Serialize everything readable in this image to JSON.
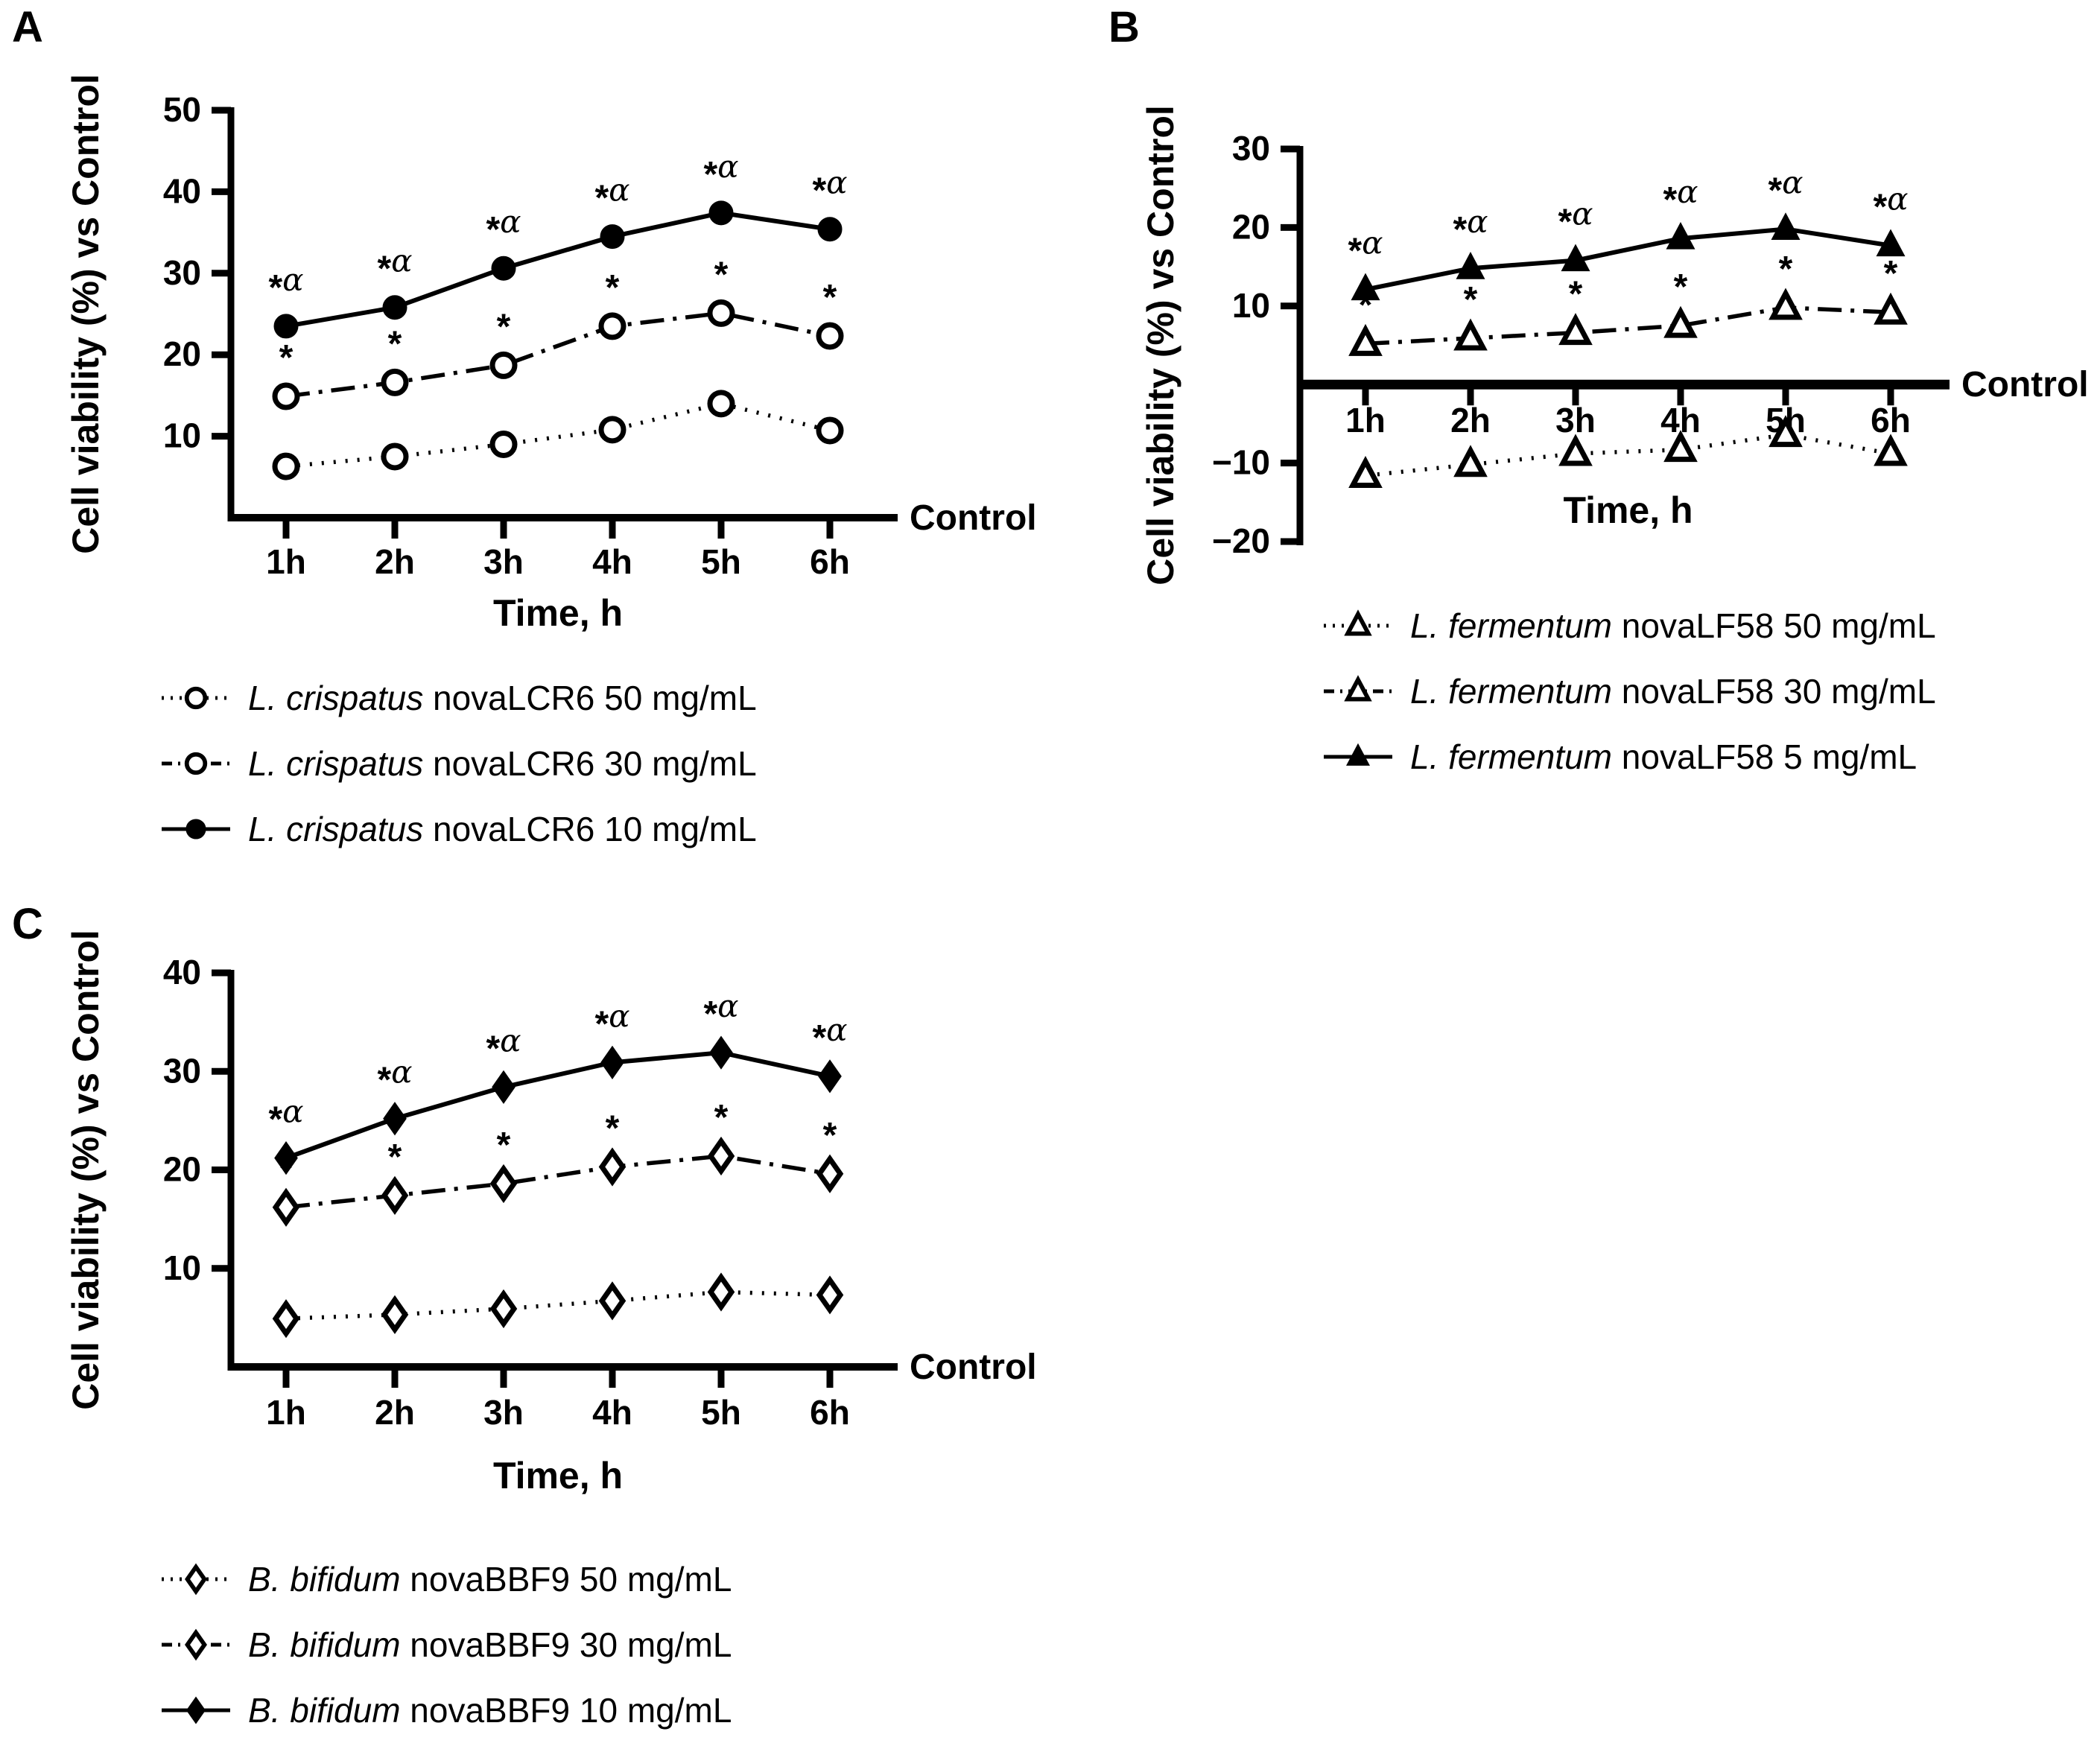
{
  "colors": {
    "ink": "#000000",
    "background": "#ffffff"
  },
  "chart_data": [
    {
      "type": "line",
      "panel_label": "A",
      "title": "",
      "ylabel": "Cell viability (%) vs Control",
      "xlabel": "Time, h",
      "baseline_label": "Control",
      "categories": [
        "1h",
        "2h",
        "3h",
        "4h",
        "5h",
        "6h"
      ],
      "ylim": [
        0,
        50
      ],
      "yticks": [
        10,
        20,
        30,
        40,
        50
      ],
      "ytick_labels": [
        "10",
        "20",
        "30",
        "40",
        "50"
      ],
      "grid": false,
      "legend_position": "below-left",
      "series": [
        {
          "name": "L. crispatus novaLCR6 50 mg/mL",
          "species": "L. crispatus",
          "label_rest": "novaLCR6 50 mg/mL",
          "marker": "circle",
          "fill": "open",
          "line_style": "dotted",
          "values": [
            6.3,
            7.5,
            9.0,
            10.8,
            14.0,
            10.7
          ],
          "point_annotation": ""
        },
        {
          "name": "L. crispatus novaLCR6 30 mg/mL",
          "species": "L. crispatus",
          "label_rest": "novaLCR6 30 mg/mL",
          "marker": "circle",
          "fill": "open",
          "line_style": "dashdot",
          "values": [
            14.9,
            16.6,
            18.7,
            23.5,
            25.1,
            22.3
          ],
          "point_annotation": "*"
        },
        {
          "name": "L. crispatus novaLCR6 10 mg/mL",
          "species": "L. crispatus",
          "label_rest": "novaLCR6 10 mg/mL",
          "marker": "circle",
          "fill": "filled",
          "line_style": "solid",
          "values": [
            23.5,
            25.8,
            30.6,
            34.5,
            37.4,
            35.4
          ],
          "point_annotation": "*α"
        }
      ]
    },
    {
      "type": "line",
      "panel_label": "B",
      "title": "",
      "ylabel": "Cell viability (%) vs Control",
      "xlabel": "Time, h",
      "baseline_label": "Control",
      "categories": [
        "1h",
        "2h",
        "3h",
        "4h",
        "5h",
        "6h"
      ],
      "ylim": [
        -20,
        30
      ],
      "yticks": [
        -20,
        -10,
        10,
        20,
        30
      ],
      "ytick_labels": [
        "−20",
        "−10",
        "10",
        "20",
        "30"
      ],
      "grid": false,
      "legend_position": "below-left",
      "series": [
        {
          "name": "L. fermentum novaLF58 50 mg/mL",
          "species": "L. fermentum",
          "label_rest": "novaLF58 50 mg/mL",
          "marker": "triangle",
          "fill": "open",
          "line_style": "dotted",
          "values": [
            -11.6,
            -10.2,
            -8.8,
            -8.3,
            -6.4,
            -8.8
          ],
          "point_annotation": ""
        },
        {
          "name": "L. fermentum novaLF58 30 mg/mL",
          "species": "L. fermentum",
          "label_rest": "novaLF58 30 mg/mL",
          "marker": "triangle",
          "fill": "open",
          "line_style": "dashdot",
          "values": [
            5.2,
            5.9,
            6.6,
            7.5,
            9.8,
            9.2
          ],
          "point_annotation": "*"
        },
        {
          "name": "L. fermentum novaLF58 5 mg/mL",
          "species": "L. fermentum",
          "label_rest": "novaLF58 5 mg/mL",
          "marker": "triangle",
          "fill": "filled",
          "line_style": "solid",
          "values": [
            12.1,
            14.8,
            15.8,
            18.6,
            19.8,
            17.7
          ],
          "point_annotation": "*α"
        }
      ]
    },
    {
      "type": "line",
      "panel_label": "C",
      "title": "",
      "ylabel": "Cell viability (%) vs Control",
      "xlabel": "Time, h",
      "baseline_label": "Control",
      "categories": [
        "1h",
        "2h",
        "3h",
        "4h",
        "5h",
        "6h"
      ],
      "ylim": [
        0,
        40
      ],
      "yticks": [
        10,
        20,
        30,
        40
      ],
      "ytick_labels": [
        "10",
        "20",
        "30",
        "40"
      ],
      "grid": false,
      "legend_position": "below-left",
      "series": [
        {
          "name": "B. bifidum novaBBF9 50 mg/mL",
          "species": "B. bifidum",
          "label_rest": "novaBBF9 50 mg/mL",
          "marker": "diamond",
          "fill": "open",
          "line_style": "dotted",
          "values": [
            4.9,
            5.3,
            5.9,
            6.7,
            7.6,
            7.3
          ],
          "point_annotation": ""
        },
        {
          "name": "B. bifidum novaBBF9 30 mg/mL",
          "species": "B. bifidum",
          "label_rest": "novaBBF9 30 mg/mL",
          "marker": "diamond",
          "fill": "open",
          "line_style": "dashdot",
          "values": [
            16.2,
            17.4,
            18.6,
            20.3,
            21.4,
            19.6
          ],
          "point_annotation": "*"
        },
        {
          "name": "B. bifidum novaBBF9 10 mg/mL",
          "species": "B. bifidum",
          "label_rest": "novaBBF9 10 mg/mL",
          "marker": "diamond",
          "fill": "filled",
          "line_style": "solid",
          "values": [
            21.2,
            25.2,
            28.4,
            30.9,
            31.9,
            29.5
          ],
          "point_annotation": "*α"
        }
      ]
    }
  ]
}
